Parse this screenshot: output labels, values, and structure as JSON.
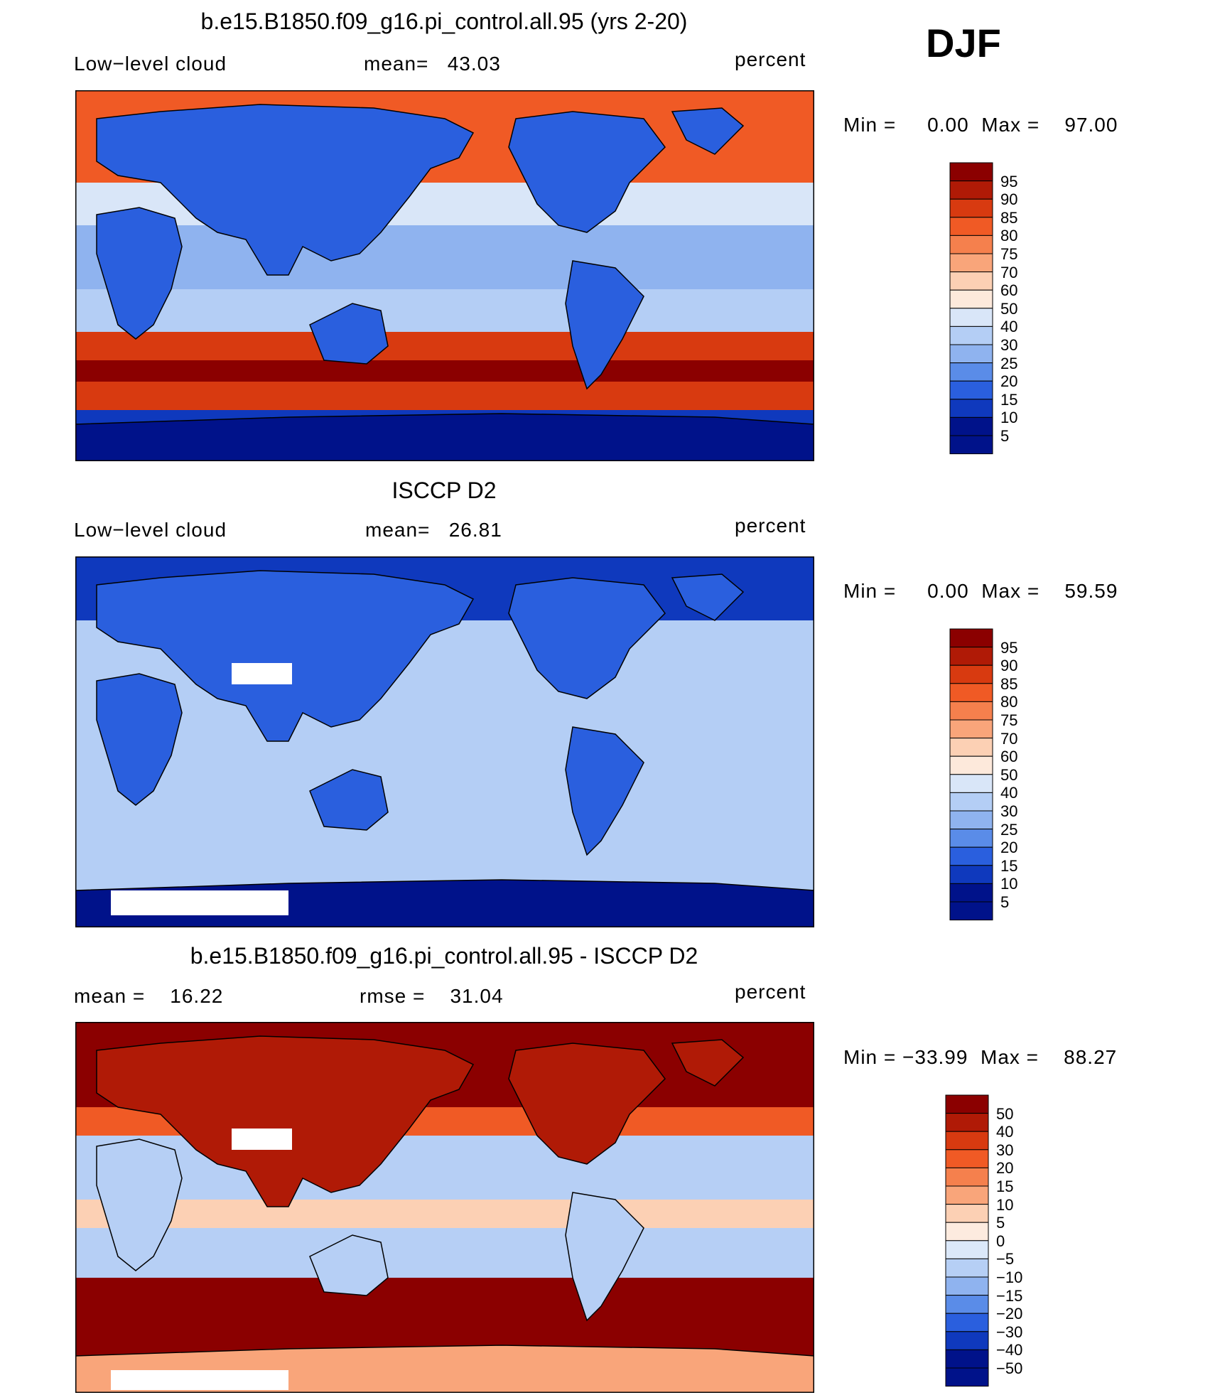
{
  "season": "DJF",
  "panels": [
    {
      "title": "b.e15.B1850.f09_g16.pi_control.all.95 (yrs 2-20)",
      "left_label": "Low−level cloud",
      "center_label": "mean=   43.03",
      "units": "percent",
      "minmax": "Min =     0.00  Max =    97.00",
      "palette": "abs",
      "colorbar": [
        "95",
        "90",
        "85",
        "80",
        "75",
        "70",
        "60",
        "50",
        "40",
        "30",
        "25",
        "20",
        "15",
        "10",
        "5"
      ]
    },
    {
      "title": "ISCCP D2",
      "left_label": "Low−level cloud",
      "center_label": "mean=   26.81",
      "units": "percent",
      "minmax": "Min =     0.00  Max =    59.59",
      "palette": "abs",
      "colorbar": [
        "95",
        "90",
        "85",
        "80",
        "75",
        "70",
        "60",
        "50",
        "40",
        "30",
        "25",
        "20",
        "15",
        "10",
        "5"
      ]
    },
    {
      "title": "b.e15.B1850.f09_g16.pi_control.all.95 - ISCCP D2",
      "left_label": "mean =    16.22",
      "center_label": "rmse =    31.04",
      "units": "percent",
      "minmax": "Min = −33.99  Max =    88.27",
      "palette": "diff",
      "colorbar": [
        "50",
        "40",
        "30",
        "20",
        "15",
        "10",
        "5",
        "0",
        "−5",
        "−10",
        "−15",
        "−20",
        "−30",
        "−40",
        "−50"
      ]
    }
  ],
  "chart_data": [
    {
      "type": "heatmap",
      "title": "b.e15.B1850.f09_g16.pi_control.all.95 (yrs 2-20)",
      "variable": "Low−level cloud",
      "units": "percent",
      "mean": 43.03,
      "min": 0.0,
      "max": 97.0,
      "contour_levels": [
        5,
        10,
        15,
        20,
        25,
        30,
        40,
        50,
        60,
        70,
        75,
        80,
        85,
        90,
        95
      ]
    },
    {
      "type": "heatmap",
      "title": "ISCCP D2",
      "variable": "Low−level cloud",
      "units": "percent",
      "mean": 26.81,
      "min": 0.0,
      "max": 59.59,
      "contour_levels": [
        5,
        10,
        15,
        20,
        25,
        30,
        40,
        50,
        60,
        70,
        75,
        80,
        85,
        90,
        95
      ]
    },
    {
      "type": "heatmap",
      "title": "b.e15.B1850.f09_g16.pi_control.all.95 - ISCCP D2",
      "units": "percent",
      "mean": 16.22,
      "rmse": 31.04,
      "min": -33.99,
      "max": 88.27,
      "contour_levels": [
        -50,
        -40,
        -30,
        -20,
        -15,
        -10,
        -5,
        0,
        5,
        10,
        15,
        20,
        30,
        40,
        50
      ]
    }
  ],
  "colors": {
    "abs": [
      "#8b0000",
      "#b01a06",
      "#d83a10",
      "#f05a25",
      "#f5804d",
      "#f9a57a",
      "#fcd0b4",
      "#fde9db",
      "#d9e6f8",
      "#b4cef5",
      "#8fb3ef",
      "#5a8ce8",
      "#2a5fde",
      "#0f39bd",
      "#00128a"
    ],
    "diff": [
      "#8b0000",
      "#b01a06",
      "#d83a10",
      "#f05a25",
      "#f5804d",
      "#f9a57a",
      "#fcd0b4",
      "#fdebdf",
      "#dbe8f9",
      "#b6cff5",
      "#8fb3ef",
      "#5a8ce8",
      "#2a5fde",
      "#0f39bd",
      "#00128a"
    ]
  }
}
